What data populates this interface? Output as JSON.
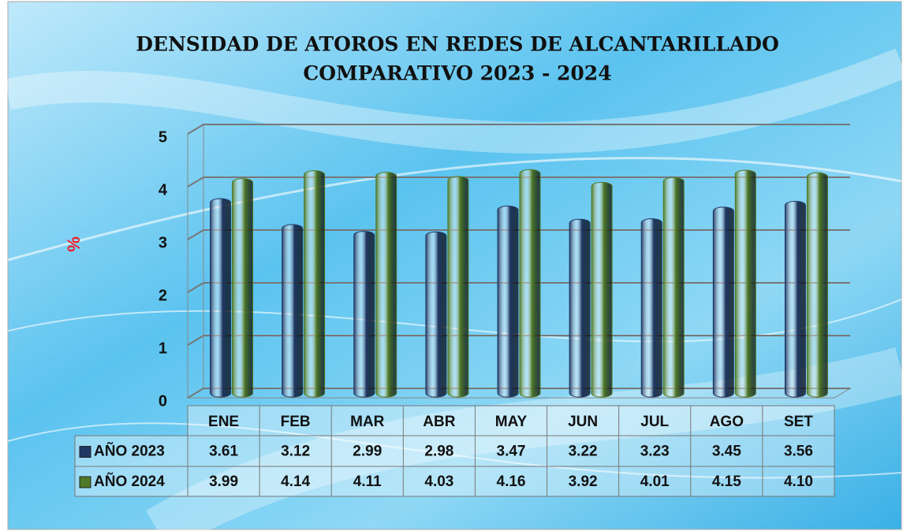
{
  "chart_data": {
    "type": "bar",
    "title": "DENSIDAD DE ATOROS EN REDES DE ALCANTARILLADO",
    "subtitle": "COMPARATIVO 2023 - 2024",
    "y_label": "%",
    "categories": [
      "ENE",
      "FEB",
      "MAR",
      "ABR",
      "MAY",
      "JUN",
      "JUL",
      "AGO",
      "SET"
    ],
    "series": [
      {
        "name": "AÑO 2023",
        "color": "#1f3864",
        "values": [
          3.61,
          3.12,
          2.99,
          2.98,
          3.47,
          3.22,
          3.23,
          3.45,
          3.56
        ],
        "value_labels": [
          "3.61",
          "3.12",
          "2.99",
          "2.98",
          "3.47",
          "3.22",
          "3.23",
          "3.45",
          "3.56"
        ]
      },
      {
        "name": "AÑO 2024",
        "color": "#4f7a28",
        "values": [
          3.99,
          4.14,
          4.11,
          4.03,
          4.16,
          3.92,
          4.01,
          4.15,
          4.1
        ],
        "value_labels": [
          "3.99",
          "4.14",
          "4.11",
          "4.03",
          "4.16",
          "3.92",
          "4.01",
          "4.15",
          "4.10"
        ]
      }
    ],
    "ylim": [
      0,
      5
    ],
    "yticks": [
      0,
      1,
      2,
      3,
      4,
      5
    ],
    "grid": true
  }
}
